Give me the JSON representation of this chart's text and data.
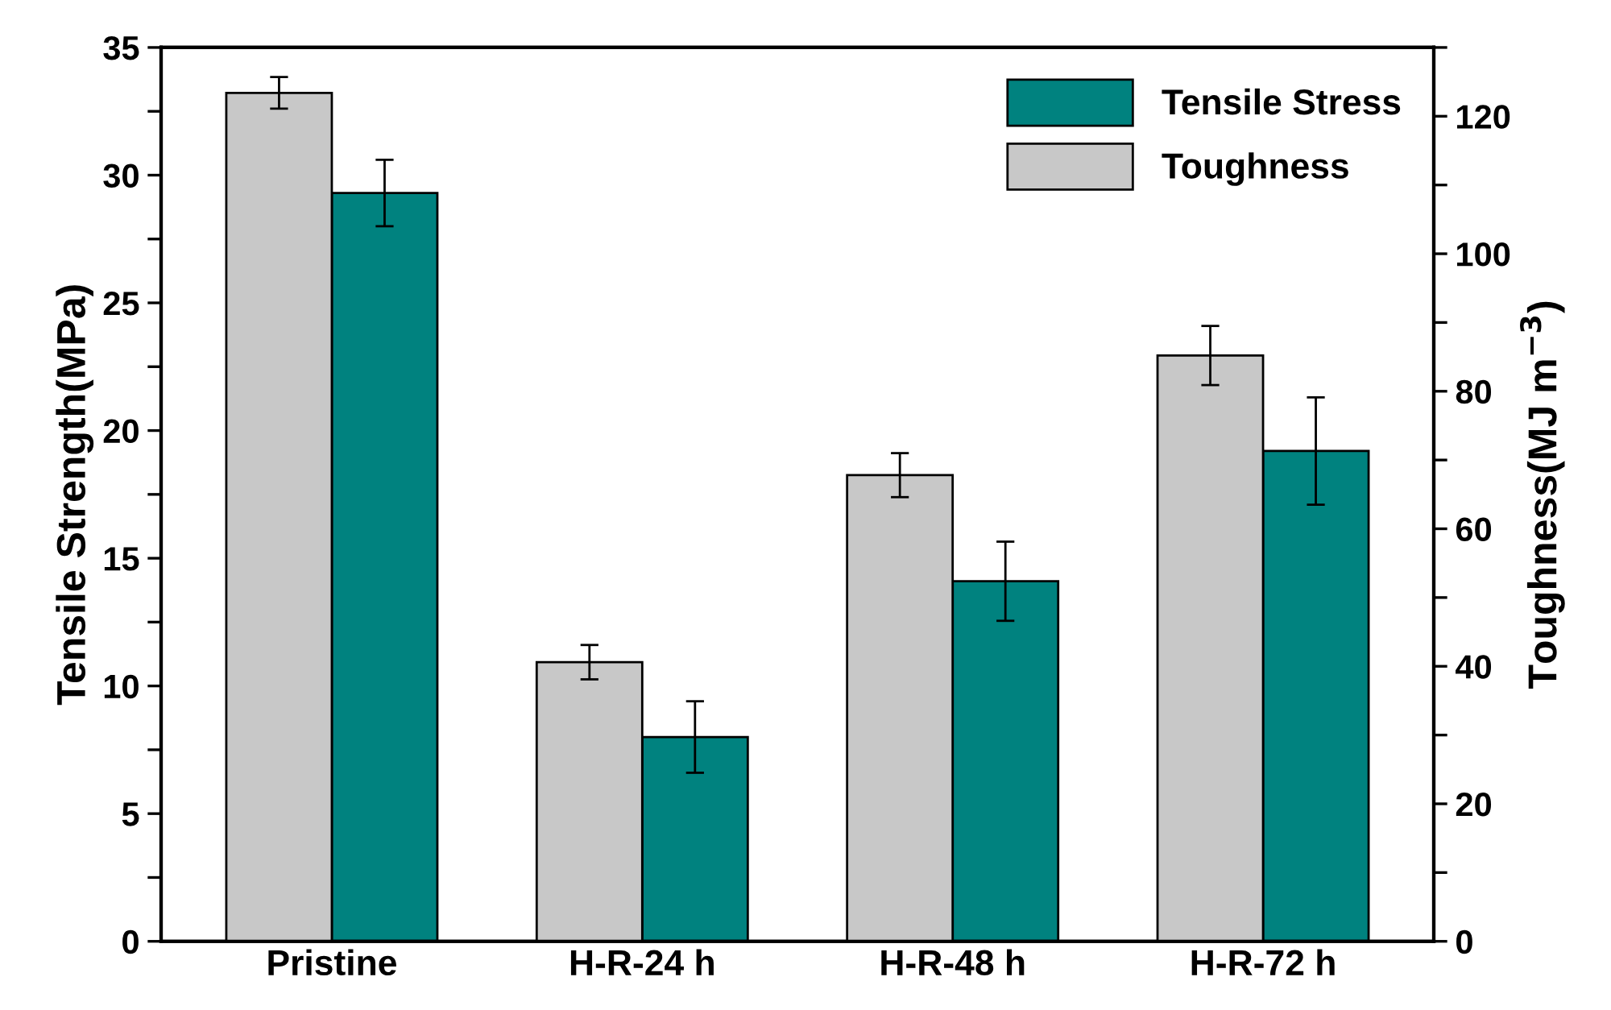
{
  "chart_data": {
    "type": "bar",
    "categories": [
      "Pristine",
      "H-R-24 h",
      "H-R-48 h",
      "H-R-72 h"
    ],
    "ylabel": "Tensile Strength(MPa)",
    "y2label": "Toughness(MJ m$^{−3}$)",
    "series": [
      {
        "name": "Toughness",
        "color": "#c8c8c8",
        "axis": "y2",
        "values": [
          123.4,
          40.6,
          67.8,
          85.2
        ],
        "errors": [
          2.3,
          2.5,
          3.2,
          4.3
        ]
      },
      {
        "name": "Tensile Stress",
        "color": "#00827f",
        "axis": "y",
        "values": [
          29.3,
          8.0,
          14.1,
          19.2
        ],
        "errors": [
          1.3,
          1.4,
          1.55,
          2.1
        ]
      }
    ],
    "ylim": [
      0,
      35
    ],
    "yticks": [
      0,
      {
        "value": 2.5,
        "label": null
      },
      5,
      {
        "value": 7.5,
        "label": null
      },
      10,
      {
        "value": 12.5,
        "label": null
      },
      15,
      {
        "value": 17.5,
        "label": null
      },
      20,
      {
        "value": 22.5,
        "label": null
      },
      25,
      {
        "value": 27.5,
        "label": null
      },
      30,
      {
        "value": 32.5,
        "label": null
      },
      35
    ],
    "y2lim": [
      0,
      130
    ],
    "y2ticks": [
      0,
      {
        "value": 10,
        "label": null
      },
      20,
      {
        "value": 30,
        "label": null
      },
      40,
      {
        "value": 50,
        "label": null
      },
      60,
      {
        "value": 70,
        "label": null
      },
      80,
      {
        "value": 90,
        "label": null
      },
      100,
      {
        "value": 110,
        "label": null
      },
      120,
      {
        "value": 130,
        "label": null
      }
    ],
    "legend": "top right",
    "grid": false
  }
}
